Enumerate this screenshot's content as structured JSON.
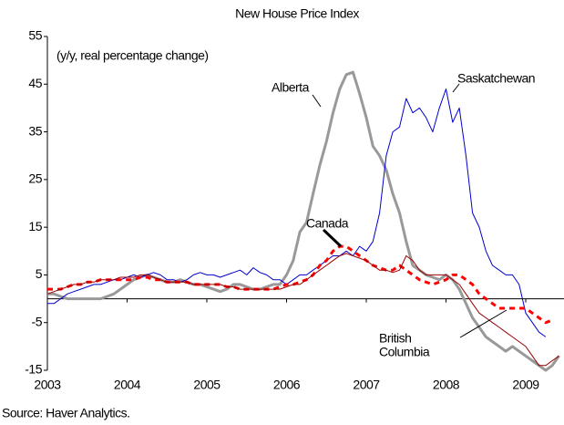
{
  "chart_data": {
    "type": "line",
    "title": "New House Price Index",
    "subtitle": "(y/y, real percentage change)",
    "source": "Source: Haver Analytics.",
    "xlim": [
      2003,
      2009.5
    ],
    "xticks": [
      2003,
      2004,
      2005,
      2006,
      2007,
      2008,
      2009
    ],
    "ylim": [
      -15,
      55
    ],
    "yticks": [
      -15,
      -5,
      5,
      15,
      25,
      35,
      45,
      55
    ],
    "zero_line": 0,
    "x": [
      2003.0,
      2003.083,
      2003.167,
      2003.25,
      2003.333,
      2003.417,
      2003.5,
      2003.583,
      2003.667,
      2003.75,
      2003.833,
      2003.917,
      2004.0,
      2004.083,
      2004.167,
      2004.25,
      2004.333,
      2004.417,
      2004.5,
      2004.583,
      2004.667,
      2004.75,
      2004.833,
      2004.917,
      2005.0,
      2005.083,
      2005.167,
      2005.25,
      2005.333,
      2005.417,
      2005.5,
      2005.583,
      2005.667,
      2005.75,
      2005.833,
      2005.917,
      2006.0,
      2006.083,
      2006.167,
      2006.25,
      2006.333,
      2006.417,
      2006.5,
      2006.583,
      2006.667,
      2006.75,
      2006.833,
      2006.917,
      2007.0,
      2007.083,
      2007.167,
      2007.25,
      2007.333,
      2007.417,
      2007.5,
      2007.583,
      2007.667,
      2007.75,
      2007.833,
      2007.917,
      2008.0,
      2008.083,
      2008.167,
      2008.25,
      2008.333,
      2008.417,
      2008.5,
      2008.583,
      2008.667,
      2008.75,
      2008.833,
      2008.917,
      2009.0,
      2009.083,
      2009.167,
      2009.25,
      2009.333,
      2009.417
    ],
    "series": [
      {
        "name": "Alberta",
        "color": "#999999",
        "line_width": 3,
        "dashed": false,
        "values": [
          1,
          1,
          0.5,
          0,
          0,
          0,
          0,
          0,
          0,
          0.5,
          1,
          2,
          3,
          4,
          4.5,
          5,
          4.5,
          4,
          3.5,
          3.5,
          4,
          3.5,
          3,
          3,
          2.5,
          2,
          1.5,
          2,
          3,
          3,
          2.5,
          2,
          2,
          2.5,
          3,
          3,
          5,
          8,
          14,
          16,
          22,
          28,
          33,
          39,
          44,
          47,
          47.5,
          43,
          38,
          32,
          30,
          27,
          22,
          18,
          12,
          7,
          6,
          5,
          4.5,
          4,
          5,
          4,
          2,
          -1,
          -4,
          -6,
          -8,
          -9,
          -10,
          -11,
          -10,
          -11,
          -12,
          -13,
          -14,
          -15,
          -14,
          -12
        ]
      },
      {
        "name": "Saskatchewan",
        "color": "#0000cc",
        "line_width": 1,
        "dashed": false,
        "values": [
          -1,
          -1,
          0,
          1,
          1.5,
          2,
          2.5,
          3,
          3,
          3.5,
          4,
          4,
          4.5,
          5,
          4.5,
          5,
          5.5,
          5,
          4,
          4,
          3.5,
          4,
          5,
          5.5,
          5,
          5,
          4.5,
          5,
          5.5,
          6,
          5,
          6.5,
          5.5,
          5,
          4,
          4,
          3,
          4,
          5,
          5,
          6,
          7,
          8,
          9,
          9,
          10,
          9,
          11,
          10,
          12,
          18,
          30,
          35,
          36,
          42,
          39,
          40,
          38,
          35,
          40,
          44,
          37,
          40,
          30,
          18,
          15,
          10,
          7,
          6,
          5,
          5,
          3,
          -3,
          -5,
          -7,
          -8,
          null,
          null
        ]
      },
      {
        "name": "Canada",
        "color": "#ff0000",
        "line_width": 3,
        "dashed": true,
        "values": [
          2,
          2,
          2,
          2.5,
          3,
          3,
          3.5,
          3.5,
          4,
          4,
          4,
          4,
          4,
          4,
          4.5,
          4.5,
          4,
          4,
          3.5,
          3.5,
          3.5,
          3.5,
          3,
          3,
          3,
          3,
          3,
          2.5,
          2.5,
          2,
          2,
          2,
          2,
          2,
          2,
          2.5,
          3,
          3,
          3.5,
          4,
          5,
          7,
          8,
          10,
          11,
          11,
          10,
          9,
          8,
          7,
          6.5,
          6,
          6,
          7,
          6,
          5,
          4,
          3.5,
          3,
          3.5,
          4,
          5,
          5,
          4,
          3,
          1,
          0,
          -1,
          -2,
          -2,
          -2,
          -2,
          -2,
          -3,
          -4,
          -5,
          -4.5,
          null
        ]
      },
      {
        "name": "British Columbia",
        "color": "#990000",
        "line_width": 1,
        "dashed": false,
        "values": [
          1,
          1.5,
          2,
          2.5,
          3,
          3,
          3.5,
          3.5,
          4,
          4,
          4,
          4.5,
          4.5,
          4.5,
          5,
          5,
          4.5,
          4,
          3.5,
          3.5,
          3.5,
          3.5,
          3,
          3,
          3,
          3,
          3,
          2.5,
          2.5,
          2,
          2,
          2,
          2,
          2,
          2,
          2,
          2.5,
          3,
          3,
          4,
          5,
          6,
          7,
          8,
          9,
          9.5,
          9,
          8.5,
          8,
          7,
          6,
          6,
          5.5,
          6,
          9,
          8,
          6,
          5,
          5,
          5,
          5,
          4,
          3,
          1,
          -1,
          -3,
          -4,
          -5,
          -6,
          -7,
          -8,
          -9,
          -10,
          -12,
          -14,
          -14,
          -13,
          -12
        ]
      }
    ],
    "annotations": [
      {
        "lines": [
          "Alberta"
        ]
      },
      {
        "lines": [
          "Saskatchewan"
        ]
      },
      {
        "lines": [
          "Canada"
        ]
      },
      {
        "lines": [
          "British",
          "Columbia"
        ]
      }
    ]
  }
}
